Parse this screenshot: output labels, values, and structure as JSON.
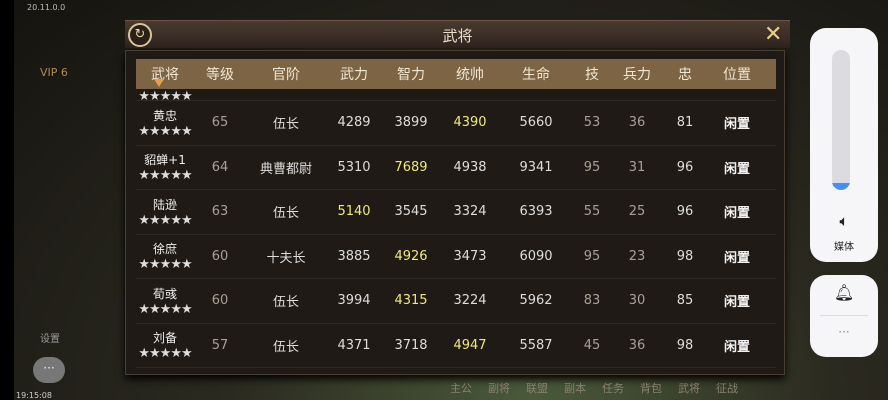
{
  "status": {
    "version": "20.11.0.0",
    "time": "19:15:08"
  },
  "side": {
    "vip": "VIP 6",
    "settings": "设置",
    "more": "···"
  },
  "dialog": {
    "title": "武将",
    "refresh_icon": "refresh-icon",
    "close_icon": "close-icon"
  },
  "table": {
    "headers": [
      "武将",
      "等级",
      "官阶",
      "武力",
      "智力",
      "统帅",
      "生命",
      "技",
      "兵力",
      "忠",
      "位置"
    ],
    "stars": "★★★★★",
    "rows": [
      {
        "name": "黄忠",
        "level": "65",
        "rank": "伍长",
        "wuli": "4289",
        "zhili": "3899",
        "tongshuai": "4390",
        "hp": "5660",
        "skill": "53",
        "troops": "36",
        "loyalty": "81",
        "position": "闲置",
        "hl": 5
      },
      {
        "name": "貂蝉+1",
        "level": "64",
        "rank": "典曹都尉",
        "wuli": "5310",
        "zhili": "7689",
        "tongshuai": "4938",
        "hp": "9341",
        "skill": "95",
        "troops": "31",
        "loyalty": "96",
        "position": "闲置",
        "hl": 4
      },
      {
        "name": "陆逊",
        "level": "63",
        "rank": "伍长",
        "wuli": "5140",
        "zhili": "3545",
        "tongshuai": "3324",
        "hp": "6393",
        "skill": "55",
        "troops": "25",
        "loyalty": "96",
        "position": "闲置",
        "hl": 3
      },
      {
        "name": "徐庶",
        "level": "60",
        "rank": "十夫长",
        "wuli": "3885",
        "zhili": "4926",
        "tongshuai": "3473",
        "hp": "6090",
        "skill": "95",
        "troops": "23",
        "loyalty": "98",
        "position": "闲置",
        "hl": 4
      },
      {
        "name": "荀彧",
        "level": "60",
        "rank": "伍长",
        "wuli": "3994",
        "zhili": "4315",
        "tongshuai": "3224",
        "hp": "5962",
        "skill": "83",
        "troops": "30",
        "loyalty": "85",
        "position": "闲置",
        "hl": 4
      },
      {
        "name": "刘备",
        "level": "57",
        "rank": "伍长",
        "wuli": "4371",
        "zhili": "3718",
        "tongshuai": "4947",
        "hp": "5587",
        "skill": "45",
        "troops": "36",
        "loyalty": "98",
        "position": "闲置",
        "hl": 5
      }
    ]
  },
  "bottom_nav": [
    "主公",
    "副将",
    "联盟",
    "副本",
    "任务",
    "背包",
    "武将",
    "征战"
  ],
  "volume": {
    "level_percent": 5,
    "label": "媒体",
    "accent": "#4a8fe8",
    "speaker_icon": "speaker-icon",
    "bell_icon": "bell-icon",
    "more": "···"
  }
}
